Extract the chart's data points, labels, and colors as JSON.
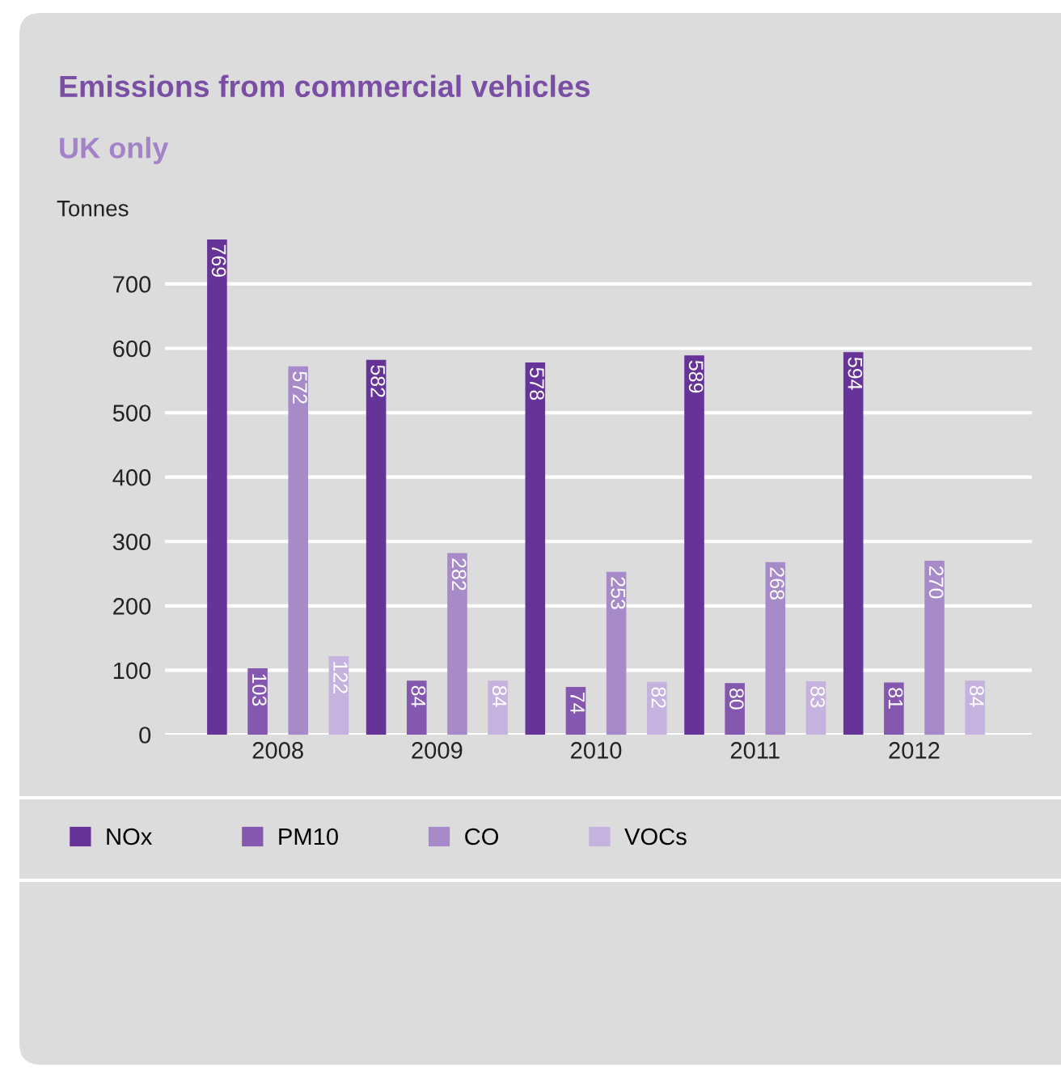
{
  "chart_data": {
    "type": "bar",
    "title": "Emissions from commercial vehicles",
    "subtitle": "UK only",
    "ylabel": "Tonnes",
    "categories": [
      "2008",
      "2009",
      "2010",
      "2011",
      "2012"
    ],
    "series": [
      {
        "name": "NOx",
        "color": "#663399",
        "values": [
          769,
          582,
          578,
          589,
          594
        ]
      },
      {
        "name": "PM10",
        "color": "#8558b0",
        "values": [
          103,
          84,
          74,
          80,
          81
        ]
      },
      {
        "name": "CO",
        "color": "#a78bc9",
        "values": [
          572,
          282,
          253,
          268,
          270
        ]
      },
      {
        "name": "VOCs",
        "color": "#c6b2df",
        "values": [
          122,
          84,
          82,
          83,
          84
        ]
      }
    ],
    "ylim": [
      0,
      769
    ],
    "yticks": [
      0,
      100,
      200,
      300,
      400,
      500,
      600,
      700
    ],
    "grid": "y",
    "legend": "bottom left",
    "data_labels": true
  }
}
